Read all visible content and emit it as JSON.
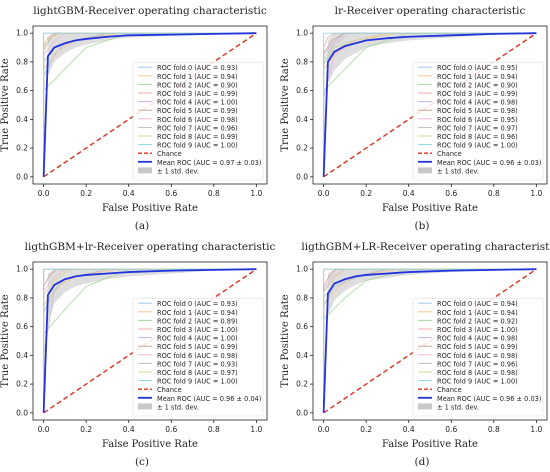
{
  "colors": {
    "mean": "#2233dd",
    "chance": "#e03020",
    "band": "#c8c8c8",
    "axis": "#222222",
    "grid": "#bbbbbb",
    "folds": [
      "#9ecbe8",
      "#f4c48e",
      "#a8d8a0",
      "#f0a8a8",
      "#c8b0dc",
      "#c8a89a",
      "#f0b8d8",
      "#c0c0c0",
      "#d8d890",
      "#90d8e0"
    ]
  },
  "chart_data": [
    {
      "type": "line",
      "panel_label": "(a)",
      "title": "lightGBM-Receiver operating characteristic",
      "xlabel": "False Positive Rate",
      "ylabel": "True Positive Rate",
      "xlim": [
        -0.05,
        1.05
      ],
      "ylim": [
        -0.05,
        1.05
      ],
      "xticks": [
        "0.0",
        "0.2",
        "0.4",
        "0.6",
        "0.8",
        "1.0"
      ],
      "yticks": [
        "0.0",
        "0.2",
        "0.4",
        "0.6",
        "0.8",
        "1.0"
      ],
      "grid": false,
      "legend_placement": "lower-right",
      "folds": [
        {
          "label": "ROC fold 0 (AUC = 0.93)",
          "x": [
            0,
            0,
            0.05,
            0.1,
            0.3,
            1
          ],
          "y": [
            0,
            0.7,
            0.85,
            0.93,
            1,
            1
          ]
        },
        {
          "label": "ROC fold 1 (AUC = 0.94)",
          "x": [
            0,
            0,
            0.07,
            0.15,
            0.35,
            1
          ],
          "y": [
            0,
            0.75,
            0.88,
            0.95,
            1,
            1
          ]
        },
        {
          "label": "ROC fold 2 (AUC = 0.90)",
          "x": [
            0,
            0,
            0.1,
            0.2,
            0.4,
            1
          ],
          "y": [
            0,
            0.6,
            0.75,
            0.9,
            1,
            1
          ]
        },
        {
          "label": "ROC fold 3 (AUC = 0.99)",
          "x": [
            0,
            0,
            0.02,
            0.05,
            1
          ],
          "y": [
            0,
            0.9,
            0.97,
            1,
            1
          ]
        },
        {
          "label": "ROC fold 4 (AUC = 1.00)",
          "x": [
            0,
            0,
            1
          ],
          "y": [
            0,
            1,
            1
          ]
        },
        {
          "label": "ROC fold 5 (AUC = 0.99)",
          "x": [
            0,
            0,
            0.03,
            0.06,
            1
          ],
          "y": [
            0,
            0.88,
            0.96,
            1,
            1
          ]
        },
        {
          "label": "ROC fold 6 (AUC = 0.98)",
          "x": [
            0,
            0,
            0.05,
            0.1,
            1
          ],
          "y": [
            0,
            0.85,
            0.94,
            1,
            1
          ]
        },
        {
          "label": "ROC fold 7 (AUC = 0.96)",
          "x": [
            0,
            0,
            0.05,
            0.15,
            0.3,
            1
          ],
          "y": [
            0,
            0.8,
            0.9,
            0.95,
            1,
            1
          ]
        },
        {
          "label": "ROC fold 8 (AUC = 0.99)",
          "x": [
            0,
            0,
            0.02,
            0.08,
            1
          ],
          "y": [
            0,
            0.92,
            0.96,
            1,
            1
          ]
        },
        {
          "label": "ROC fold 9 (AUC = 1.00)",
          "x": [
            0,
            0,
            1
          ],
          "y": [
            0,
            1,
            1
          ]
        }
      ],
      "chance": {
        "label": "Chance",
        "x": [
          0,
          1
        ],
        "y": [
          0,
          1
        ]
      },
      "mean": {
        "label": "Mean ROC (AUC = 0.97 ± 0.03)",
        "x": [
          0,
          0.02,
          0.05,
          0.1,
          0.15,
          0.2,
          0.3,
          0.4,
          0.6,
          0.8,
          1.0
        ],
        "y": [
          0,
          0.84,
          0.9,
          0.93,
          0.95,
          0.96,
          0.975,
          0.985,
          0.99,
          0.995,
          1.0
        ]
      },
      "band": {
        "label": "± 1 std. dev.",
        "x": [
          0,
          0.02,
          0.05,
          0.1,
          0.15,
          0.2,
          0.3,
          0.4,
          0.6,
          0.8,
          1.0
        ],
        "upper": [
          0,
          0.97,
          1,
          1,
          1,
          1,
          1,
          1,
          1,
          1,
          1
        ],
        "lower": [
          0,
          0.7,
          0.8,
          0.86,
          0.9,
          0.92,
          0.95,
          0.97,
          0.98,
          0.99,
          1
        ]
      }
    },
    {
      "type": "line",
      "panel_label": "(b)",
      "title": "lr-Receiver operating characteristic",
      "xlabel": "False Positive Rate",
      "ylabel": "True Positive Rate",
      "xlim": [
        -0.05,
        1.05
      ],
      "ylim": [
        -0.05,
        1.05
      ],
      "xticks": [
        "0.0",
        "0.2",
        "0.4",
        "0.6",
        "0.8",
        "1.0"
      ],
      "yticks": [
        "0.0",
        "0.2",
        "0.4",
        "0.6",
        "0.8",
        "1.0"
      ],
      "grid": false,
      "legend_placement": "lower-right",
      "folds": [
        {
          "label": "ROC fold 0 (AUC = 0.95)",
          "x": [
            0,
            0,
            0.05,
            0.15,
            0.3,
            1
          ],
          "y": [
            0,
            0.78,
            0.9,
            0.95,
            1,
            1
          ]
        },
        {
          "label": "ROC fold 1 (AUC = 0.94)",
          "x": [
            0,
            0,
            0.07,
            0.15,
            0.35,
            1
          ],
          "y": [
            0,
            0.75,
            0.88,
            0.95,
            1,
            1
          ]
        },
        {
          "label": "ROC fold 2 (AUC = 0.90)",
          "x": [
            0,
            0,
            0.1,
            0.2,
            0.4,
            1
          ],
          "y": [
            0,
            0.6,
            0.75,
            0.9,
            1,
            1
          ]
        },
        {
          "label": "ROC fold 3 (AUC = 0.99)",
          "x": [
            0,
            0,
            0.02,
            0.05,
            1
          ],
          "y": [
            0,
            0.9,
            0.97,
            1,
            1
          ]
        },
        {
          "label": "ROC fold 4 (AUC = 0.98)",
          "x": [
            0,
            0,
            0.05,
            0.1,
            1
          ],
          "y": [
            0,
            0.85,
            0.94,
            1,
            1
          ]
        },
        {
          "label": "ROC fold 5 (AUC = 0.98)",
          "x": [
            0,
            0,
            0.04,
            0.1,
            1
          ],
          "y": [
            0,
            0.86,
            0.95,
            1,
            1
          ]
        },
        {
          "label": "ROC fold 6 (AUC = 0.95)",
          "x": [
            0,
            0,
            0.05,
            0.15,
            0.3,
            1
          ],
          "y": [
            0,
            0.55,
            0.85,
            0.95,
            1,
            1
          ]
        },
        {
          "label": "ROC fold 7 (AUC = 0.97)",
          "x": [
            0,
            0,
            0.05,
            0.12,
            1
          ],
          "y": [
            0,
            0.82,
            0.92,
            1,
            1
          ]
        },
        {
          "label": "ROC fold 8 (AUC = 0.96)",
          "x": [
            0,
            0,
            0.05,
            0.15,
            0.3,
            1
          ],
          "y": [
            0,
            0.8,
            0.9,
            0.95,
            1,
            1
          ]
        },
        {
          "label": "ROC fold 9 (AUC = 1.00)",
          "x": [
            0,
            0,
            1
          ],
          "y": [
            0,
            1,
            1
          ]
        }
      ],
      "chance": {
        "label": "Chance",
        "x": [
          0,
          1
        ],
        "y": [
          0,
          1
        ]
      },
      "mean": {
        "label": "Mean ROC (AUC = 0.96 ± 0.03)",
        "x": [
          0,
          0.02,
          0.05,
          0.1,
          0.15,
          0.2,
          0.3,
          0.4,
          0.6,
          0.8,
          1.0
        ],
        "y": [
          0,
          0.8,
          0.87,
          0.91,
          0.93,
          0.95,
          0.965,
          0.975,
          0.985,
          0.995,
          1.0
        ]
      },
      "band": {
        "label": "± 1 std. dev.",
        "x": [
          0,
          0.02,
          0.05,
          0.1,
          0.15,
          0.2,
          0.3,
          0.4,
          0.6,
          0.8,
          1.0
        ],
        "upper": [
          0,
          0.95,
          1,
          1,
          1,
          1,
          1,
          1,
          1,
          1,
          1
        ],
        "lower": [
          0,
          0.65,
          0.74,
          0.82,
          0.86,
          0.9,
          0.93,
          0.95,
          0.97,
          0.99,
          1
        ]
      }
    },
    {
      "type": "line",
      "panel_label": "(c)",
      "title": "ligthGBM+lr-Receiver operating characteristic",
      "xlabel": "False Positive Rate",
      "ylabel": "True Positive Rate",
      "xlim": [
        -0.05,
        1.05
      ],
      "ylim": [
        -0.05,
        1.05
      ],
      "xticks": [
        "0.0",
        "0.2",
        "0.4",
        "0.6",
        "0.8",
        "1.0"
      ],
      "yticks": [
        "0.0",
        "0.2",
        "0.4",
        "0.6",
        "0.8",
        "1.0"
      ],
      "grid": false,
      "legend_placement": "lower-right",
      "folds": [
        {
          "label": "ROC fold 0 (AUC = 0.93)",
          "x": [
            0,
            0,
            0.05,
            0.1,
            0.3,
            1
          ],
          "y": [
            0,
            0.7,
            0.85,
            0.93,
            1,
            1
          ]
        },
        {
          "label": "ROC fold 1 (AUC = 0.94)",
          "x": [
            0,
            0,
            0.07,
            0.15,
            0.35,
            1
          ],
          "y": [
            0,
            0.75,
            0.88,
            0.95,
            1,
            1
          ]
        },
        {
          "label": "ROC fold 2 (AUC = 0.89)",
          "x": [
            0,
            0,
            0.1,
            0.2,
            0.4,
            1
          ],
          "y": [
            0,
            0.55,
            0.72,
            0.88,
            1,
            1
          ]
        },
        {
          "label": "ROC fold 3 (AUC = 1.00)",
          "x": [
            0,
            0,
            1
          ],
          "y": [
            0,
            1,
            1
          ]
        },
        {
          "label": "ROC fold 4 (AUC = 1.00)",
          "x": [
            0,
            0,
            1
          ],
          "y": [
            0,
            1,
            1
          ]
        },
        {
          "label": "ROC fold 5 (AUC = 0.99)",
          "x": [
            0,
            0,
            0.03,
            0.06,
            1
          ],
          "y": [
            0,
            0.88,
            0.96,
            1,
            1
          ]
        },
        {
          "label": "ROC fold 6 (AUC = 0.98)",
          "x": [
            0,
            0,
            0.05,
            0.1,
            1
          ],
          "y": [
            0,
            0.85,
            0.94,
            1,
            1
          ]
        },
        {
          "label": "ROC fold 7 (AUC = 0.93)",
          "x": [
            0,
            0,
            0.05,
            0.1,
            0.3,
            1
          ],
          "y": [
            0,
            0.4,
            0.85,
            0.93,
            1,
            1
          ]
        },
        {
          "label": "ROC fold 8 (AUC = 0.97)",
          "x": [
            0,
            0,
            0.05,
            0.12,
            1
          ],
          "y": [
            0,
            0.82,
            0.92,
            1,
            1
          ]
        },
        {
          "label": "ROC fold 9 (AUC = 1.00)",
          "x": [
            0,
            0,
            1
          ],
          "y": [
            0,
            1,
            1
          ]
        }
      ],
      "chance": {
        "label": "Chance",
        "x": [
          0,
          1
        ],
        "y": [
          0,
          1
        ]
      },
      "mean": {
        "label": "Mean ROC (AUC = 0.96 ± 0.04)",
        "x": [
          0,
          0.02,
          0.05,
          0.1,
          0.15,
          0.2,
          0.3,
          0.4,
          0.6,
          0.8,
          1.0
        ],
        "y": [
          0,
          0.82,
          0.89,
          0.93,
          0.95,
          0.96,
          0.97,
          0.98,
          0.99,
          0.995,
          1.0
        ]
      },
      "band": {
        "label": "± 1 std. dev.",
        "x": [
          0,
          0.02,
          0.05,
          0.1,
          0.15,
          0.2,
          0.3,
          0.4,
          0.6,
          0.8,
          1.0
        ],
        "upper": [
          0,
          0.97,
          1,
          1,
          1,
          1,
          1,
          1,
          1,
          1,
          1
        ],
        "lower": [
          0,
          0.62,
          0.76,
          0.84,
          0.88,
          0.9,
          0.93,
          0.95,
          0.97,
          0.99,
          1
        ]
      }
    },
    {
      "type": "line",
      "panel_label": "(d)",
      "title": "ligthGBM+LR-Receiver operating characteristic",
      "xlabel": "False Positive Rate",
      "ylabel": "True Positive Rate",
      "xlim": [
        -0.05,
        1.05
      ],
      "ylim": [
        -0.05,
        1.05
      ],
      "xticks": [
        "0.0",
        "0.2",
        "0.4",
        "0.6",
        "0.8",
        "1.0"
      ],
      "yticks": [
        "0.0",
        "0.2",
        "0.4",
        "0.6",
        "0.8",
        "1.0"
      ],
      "grid": false,
      "legend_placement": "lower-right",
      "folds": [
        {
          "label": "ROC fold 0 (AUC = 0.94)",
          "x": [
            0,
            0,
            0.05,
            0.15,
            0.3,
            1
          ],
          "y": [
            0,
            0.75,
            0.88,
            0.94,
            1,
            1
          ]
        },
        {
          "label": "ROC fold 1 (AUC = 0.94)",
          "x": [
            0,
            0,
            0.07,
            0.15,
            0.35,
            1
          ],
          "y": [
            0,
            0.75,
            0.88,
            0.95,
            1,
            1
          ]
        },
        {
          "label": "ROC fold 2 (AUC = 0.92)",
          "x": [
            0,
            0,
            0.1,
            0.2,
            0.4,
            1
          ],
          "y": [
            0,
            0.65,
            0.8,
            0.92,
            1,
            1
          ]
        },
        {
          "label": "ROC fold 3 (AUC = 1.00)",
          "x": [
            0,
            0,
            1
          ],
          "y": [
            0,
            1,
            1
          ]
        },
        {
          "label": "ROC fold 4 (AUC = 0.98)",
          "x": [
            0,
            0,
            0.05,
            0.1,
            1
          ],
          "y": [
            0,
            0.85,
            0.94,
            1,
            1
          ]
        },
        {
          "label": "ROC fold 5 (AUC = 0.99)",
          "x": [
            0,
            0,
            0.03,
            0.06,
            1
          ],
          "y": [
            0,
            0.88,
            0.96,
            1,
            1
          ]
        },
        {
          "label": "ROC fold 6 (AUC = 0.98)",
          "x": [
            0,
            0,
            0.04,
            0.1,
            1
          ],
          "y": [
            0,
            0.86,
            0.95,
            1,
            1
          ]
        },
        {
          "label": "ROC fold 7 (AUC = 0.96)",
          "x": [
            0,
            0,
            0.05,
            0.15,
            0.3,
            1
          ],
          "y": [
            0,
            0.8,
            0.9,
            0.95,
            1,
            1
          ]
        },
        {
          "label": "ROC fold 8 (AUC = 0.98)",
          "x": [
            0,
            0,
            0.05,
            0.1,
            1
          ],
          "y": [
            0,
            0.84,
            0.94,
            1,
            1
          ]
        },
        {
          "label": "ROC fold 9 (AUC = 1.00)",
          "x": [
            0,
            0,
            1
          ],
          "y": [
            0,
            1,
            1
          ]
        }
      ],
      "chance": {
        "label": "Chance",
        "x": [
          0,
          1
        ],
        "y": [
          0,
          1
        ]
      },
      "mean": {
        "label": "Mean ROC (AUC = 0.96 ± 0.03)",
        "x": [
          0,
          0.02,
          0.05,
          0.1,
          0.15,
          0.2,
          0.3,
          0.4,
          0.6,
          0.8,
          1.0
        ],
        "y": [
          0,
          0.83,
          0.9,
          0.93,
          0.95,
          0.96,
          0.97,
          0.98,
          0.99,
          0.995,
          1.0
        ]
      },
      "band": {
        "label": "± 1 std. dev.",
        "x": [
          0,
          0.02,
          0.05,
          0.1,
          0.15,
          0.2,
          0.3,
          0.4,
          0.6,
          0.8,
          1.0
        ],
        "upper": [
          0,
          0.97,
          1,
          1,
          1,
          1,
          1,
          1,
          1,
          1,
          1
        ],
        "lower": [
          0,
          0.68,
          0.78,
          0.85,
          0.89,
          0.92,
          0.94,
          0.96,
          0.98,
          0.99,
          1
        ]
      }
    }
  ]
}
